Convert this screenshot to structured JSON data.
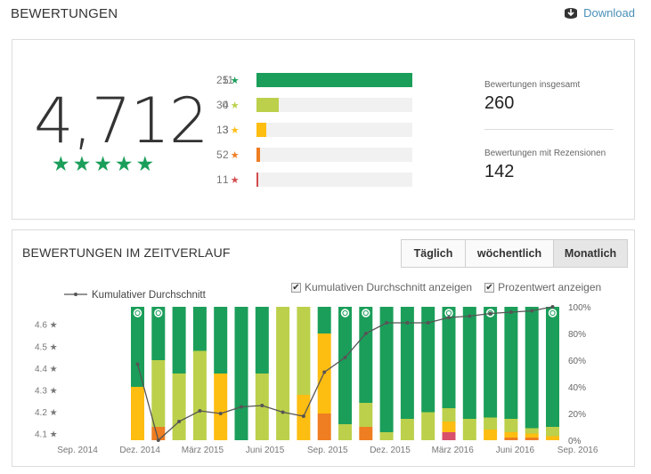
{
  "header": {
    "title": "BEWERTUNGEN",
    "download_label": "Download"
  },
  "summary": {
    "average": "4,712",
    "stars_filled": 5,
    "histogram": [
      {
        "stars": "5",
        "count": "211",
        "value": 211,
        "color": "#1b9e5a"
      },
      {
        "stars": "4",
        "count": "30",
        "value": 30,
        "color": "#bcd04b"
      },
      {
        "stars": "3",
        "count": "13",
        "value": 13,
        "color": "#fdbd11"
      },
      {
        "stars": "2",
        "count": "5",
        "value": 5,
        "color": "#ef7d22"
      },
      {
        "stars": "1",
        "count": "1",
        "value": 1,
        "color": "#d34c4c"
      }
    ],
    "total_label": "Bewertungen insgesamt",
    "total_value": "260",
    "reviews_label": "Bewertungen mit Rezensionen",
    "reviews_value": "142"
  },
  "timeline": {
    "title": "BEWERTUNGEN IM ZEITVERLAUF",
    "tabs": [
      {
        "label": "Täglich",
        "active": false
      },
      {
        "label": "wöchentlich",
        "active": false
      },
      {
        "label": "Monatlich",
        "active": true
      }
    ],
    "checkbox_cumulative": "Kumulativen Durchschnitt anzeigen",
    "checkbox_percent": "Prozentwert anzeigen",
    "checkbox_cumulative_checked": true,
    "checkbox_percent_checked": true
  },
  "colors": {
    "s5": "#1b9e5a",
    "s4": "#bcd04b",
    "s3": "#fdbd11",
    "s2": "#ef7d22",
    "s1": "#d9506a",
    "line": "#555555"
  },
  "chart_data": {
    "type": "bar",
    "stacked": true,
    "legend": "Kumulativer Durchschnitt",
    "x_ticks": [
      "Sep. 2014",
      "Dez. 2014",
      "März 2015",
      "Juni 2015",
      "Sep. 2015",
      "Dez. 2015",
      "März 2016",
      "Juni 2016",
      "Sep. 2016"
    ],
    "y_left_ticks": [
      "4.1 ★",
      "4.2 ★",
      "4.3 ★",
      "4.4 ★",
      "4.5 ★",
      "4.6 ★"
    ],
    "y_right_ticks": [
      "0%",
      "20%",
      "40%",
      "60%",
      "80%",
      "100%"
    ],
    "y_left_range": [
      4.07,
      4.68
    ],
    "y_right_range": [
      0,
      100
    ],
    "series_names": [
      "5",
      "4",
      "3",
      "2",
      "1"
    ],
    "bars": [
      {
        "s1": 0,
        "s2": 0,
        "s3": 40,
        "s4": 0,
        "s5": 60,
        "review_icon": true
      },
      {
        "s1": 0,
        "s2": 10,
        "s3": 0,
        "s4": 50,
        "s5": 40,
        "review_icon": true
      },
      {
        "s1": 0,
        "s2": 0,
        "s3": 0,
        "s4": 50,
        "s5": 50,
        "review_icon": false
      },
      {
        "s1": 0,
        "s2": 0,
        "s3": 0,
        "s4": 67,
        "s5": 33,
        "review_icon": false
      },
      {
        "s1": 0,
        "s2": 0,
        "s3": 50,
        "s4": 0,
        "s5": 50,
        "review_icon": false
      },
      {
        "s1": 0,
        "s2": 0,
        "s3": 0,
        "s4": 0,
        "s5": 100,
        "review_icon": false
      },
      {
        "s1": 0,
        "s2": 0,
        "s3": 0,
        "s4": 50,
        "s5": 50,
        "review_icon": false
      },
      {
        "s1": 0,
        "s2": 0,
        "s3": 0,
        "s4": 100,
        "s5": 0,
        "review_icon": false
      },
      {
        "s1": 0,
        "s2": 0,
        "s3": 34,
        "s4": 66,
        "s5": 0,
        "review_icon": false
      },
      {
        "s1": 0,
        "s2": 20,
        "s3": 60,
        "s4": 0,
        "s5": 20,
        "review_icon": false
      },
      {
        "s1": 0,
        "s2": 0,
        "s3": 0,
        "s4": 12,
        "s5": 88,
        "review_icon": true
      },
      {
        "s1": 0,
        "s2": 10,
        "s3": 0,
        "s4": 18,
        "s5": 72,
        "review_icon": true
      },
      {
        "s1": 0,
        "s2": 0,
        "s3": 0,
        "s4": 6,
        "s5": 94,
        "review_icon": false
      },
      {
        "s1": 0,
        "s2": 0,
        "s3": 0,
        "s4": 16,
        "s5": 84,
        "review_icon": false
      },
      {
        "s1": 0,
        "s2": 0,
        "s3": 0,
        "s4": 21,
        "s5": 79,
        "review_icon": false
      },
      {
        "s1": 6,
        "s2": 0,
        "s3": 8,
        "s4": 10,
        "s5": 76,
        "review_icon": true
      },
      {
        "s1": 0,
        "s2": 0,
        "s3": 0,
        "s4": 16,
        "s5": 84,
        "review_icon": false
      },
      {
        "s1": 0,
        "s2": 0,
        "s3": 8,
        "s4": 9,
        "s5": 83,
        "review_icon": true
      },
      {
        "s1": 0,
        "s2": 2,
        "s3": 4,
        "s4": 10,
        "s5": 84,
        "review_icon": false
      },
      {
        "s1": 0,
        "s2": 2,
        "s3": 3,
        "s4": 4,
        "s5": 91,
        "review_icon": false
      },
      {
        "s1": 0,
        "s2": 0,
        "s3": 3,
        "s4": 7,
        "s5": 90,
        "review_icon": true
      }
    ],
    "cumulative_pct": [
      57,
      0,
      14,
      22,
      20,
      25,
      26,
      21,
      18,
      51,
      62,
      80,
      88,
      88,
      88,
      92,
      93,
      95,
      96,
      97,
      100
    ]
  }
}
